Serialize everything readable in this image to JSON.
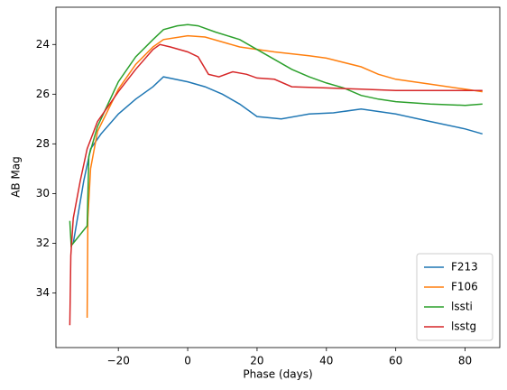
{
  "chart_data": {
    "type": "line",
    "x_label": "Phase (days)",
    "y_label": "AB Mag",
    "xlim": [
      -38,
      90
    ],
    "ylim": [
      22.5,
      36.2
    ],
    "y_inverted": true,
    "grid": false,
    "legend_position": "lower right",
    "xticks": [
      {
        "value": -20,
        "label": "−20"
      },
      0,
      20,
      40,
      60,
      80
    ],
    "yticks": [
      24,
      26,
      28,
      30,
      32,
      34
    ],
    "series": [
      {
        "name": "F213",
        "color": "#1f77b4",
        "x": [
          -33,
          -30,
          -28,
          -25,
          -20,
          -15,
          -10,
          -7,
          0,
          5,
          10,
          15,
          20,
          27,
          35,
          42,
          50,
          60,
          70,
          80,
          85
        ],
        "values": [
          32.0,
          29.5,
          28.2,
          27.6,
          26.8,
          26.2,
          25.7,
          25.3,
          25.5,
          25.7,
          26.0,
          26.4,
          26.9,
          27.0,
          26.8,
          26.75,
          26.6,
          26.8,
          27.1,
          27.4,
          27.6
        ]
      },
      {
        "name": "F106",
        "color": "#ff7f0e",
        "x": [
          -29,
          -28.8,
          -28,
          -26,
          -20,
          -15,
          -10,
          -7,
          0,
          5,
          10,
          15,
          20,
          25,
          35,
          40,
          50,
          55,
          60,
          70,
          80,
          85
        ],
        "values": [
          35.0,
          31.0,
          29.0,
          27.5,
          25.8,
          24.8,
          24.1,
          23.8,
          23.65,
          23.7,
          23.9,
          24.1,
          24.2,
          24.3,
          24.45,
          24.55,
          24.9,
          25.2,
          25.4,
          25.6,
          25.8,
          25.9
        ]
      },
      {
        "name": "lssti",
        "color": "#2ca02c",
        "x": [
          -34,
          -33.6,
          -29,
          -28.5,
          -26,
          -20,
          -15,
          -10,
          -7,
          -3,
          0,
          3,
          8,
          15,
          20,
          25,
          30,
          35,
          40,
          45,
          50,
          55,
          60,
          70,
          80,
          85
        ],
        "values": [
          31.1,
          32.1,
          31.3,
          28.5,
          27.3,
          25.5,
          24.5,
          23.8,
          23.4,
          23.25,
          23.2,
          23.25,
          23.5,
          23.8,
          24.2,
          24.6,
          25.0,
          25.3,
          25.55,
          25.75,
          26.05,
          26.2,
          26.3,
          26.4,
          26.45,
          26.4
        ]
      },
      {
        "name": "lsstg",
        "color": "#d62728",
        "x": [
          -34,
          -33.7,
          -33,
          -31,
          -29,
          -26,
          -20,
          -15,
          -10,
          -8,
          -5,
          0,
          3,
          6,
          9,
          13,
          17,
          20,
          25,
          30,
          40,
          50,
          60,
          85
        ],
        "values": [
          35.3,
          32.5,
          31.0,
          29.5,
          28.2,
          27.1,
          25.9,
          25.0,
          24.2,
          24.0,
          24.1,
          24.3,
          24.5,
          25.2,
          25.3,
          25.1,
          25.2,
          25.35,
          25.4,
          25.7,
          25.75,
          25.8,
          25.85,
          25.85
        ]
      }
    ]
  }
}
